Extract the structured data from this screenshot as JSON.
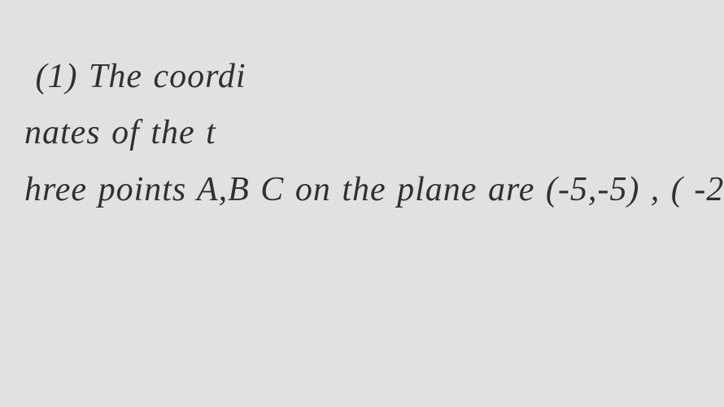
{
  "document": {
    "background_color": "#e0e2df",
    "text_color": "#303030",
    "font_size": 42,
    "font_style": "italic",
    "line_height": 1.65,
    "lines": [
      " (1) The coordi",
      "nates of the t",
      "hree points A,B C on the plane are (-5,-5) , ( -2"
    ]
  }
}
